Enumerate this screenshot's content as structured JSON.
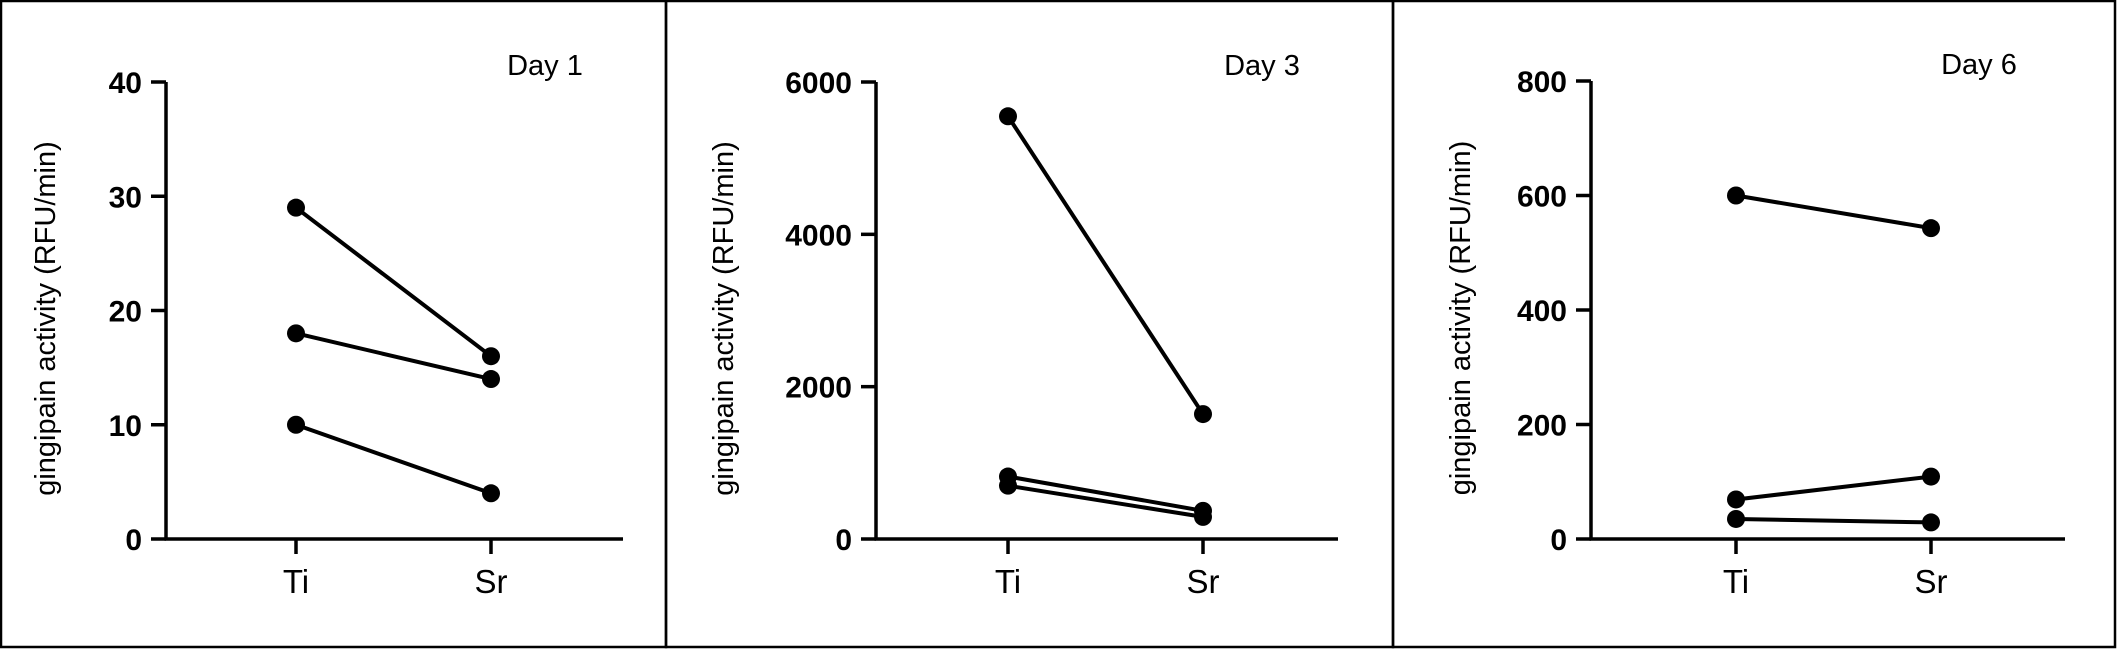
{
  "chart_data": [
    {
      "type": "line",
      "title": "Day 1",
      "ylabel": "gingipain activity (RFU/min)",
      "xlabel": "",
      "categories": [
        "Ti",
        "Sr"
      ],
      "ylim": [
        0,
        40
      ],
      "yticks": [
        "0",
        "10",
        "20",
        "30",
        "40"
      ],
      "series": [
        {
          "values": [
            29,
            16
          ]
        },
        {
          "values": [
            18,
            14
          ]
        },
        {
          "values": [
            10,
            4
          ]
        }
      ]
    },
    {
      "type": "line",
      "title": "Day 3",
      "ylabel": "gingipain activity (RFU/min)",
      "xlabel": "",
      "categories": [
        "Ti",
        "Sr"
      ],
      "ylim": [
        0,
        6000
      ],
      "yticks": [
        "0",
        "2000",
        "4000",
        "6000"
      ],
      "series": [
        {
          "values": [
            5550,
            1640
          ]
        },
        {
          "values": [
            820,
            370
          ]
        },
        {
          "values": [
            700,
            290
          ]
        }
      ]
    },
    {
      "type": "line",
      "title": "Day 6",
      "ylabel": "gingipain activity (RFU/min)",
      "xlabel": "",
      "categories": [
        "Ti",
        "Sr"
      ],
      "ylim": [
        0,
        800
      ],
      "yticks": [
        "0",
        "200",
        "400",
        "600",
        "800"
      ],
      "series": [
        {
          "values": [
            600,
            543
          ]
        },
        {
          "values": [
            69,
            109
          ]
        },
        {
          "values": [
            35,
            29
          ]
        }
      ]
    }
  ]
}
